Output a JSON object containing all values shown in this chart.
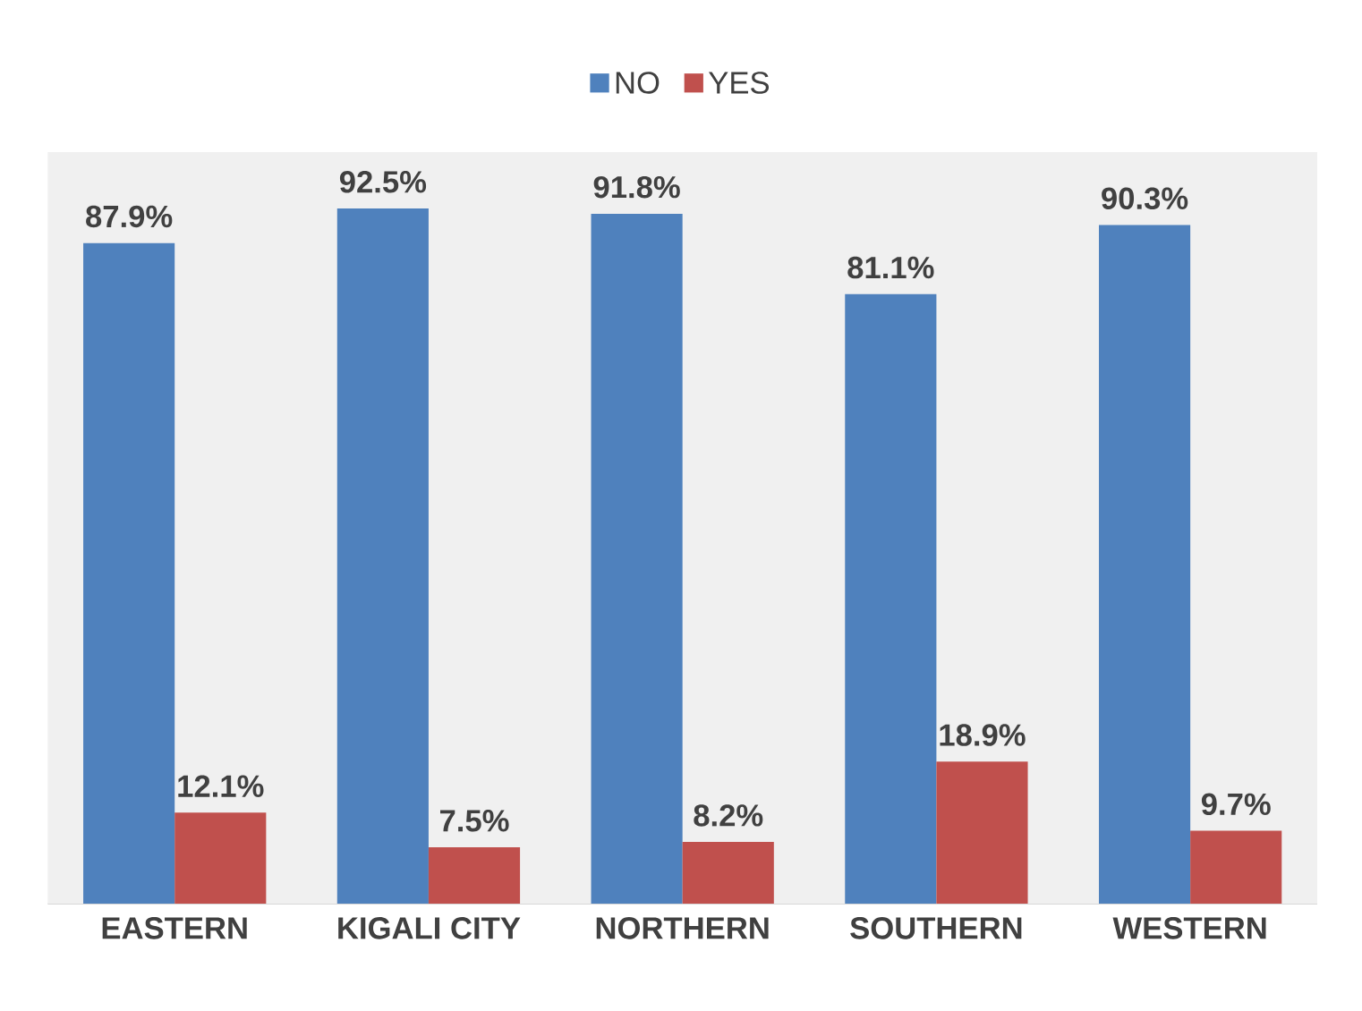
{
  "chart_data": {
    "type": "bar",
    "categories": [
      "EASTERN",
      "KIGALI CITY",
      "NORTHERN",
      "SOUTHERN",
      "WESTERN"
    ],
    "series": [
      {
        "name": "NO",
        "color": "#4f81bd",
        "values": [
          87.9,
          92.5,
          91.8,
          81.1,
          90.3
        ],
        "value_labels": [
          "87.9%",
          "92.5%",
          "91.8%",
          "81.1%",
          "90.3%"
        ]
      },
      {
        "name": "YES",
        "color": "#c0504d",
        "values": [
          12.1,
          7.5,
          8.2,
          18.9,
          9.7
        ],
        "value_labels": [
          "12.1%",
          "7.5%",
          "8.2%",
          "18.9%",
          "9.7%"
        ]
      }
    ],
    "ylim": [
      0,
      100
    ],
    "legend": "top"
  }
}
